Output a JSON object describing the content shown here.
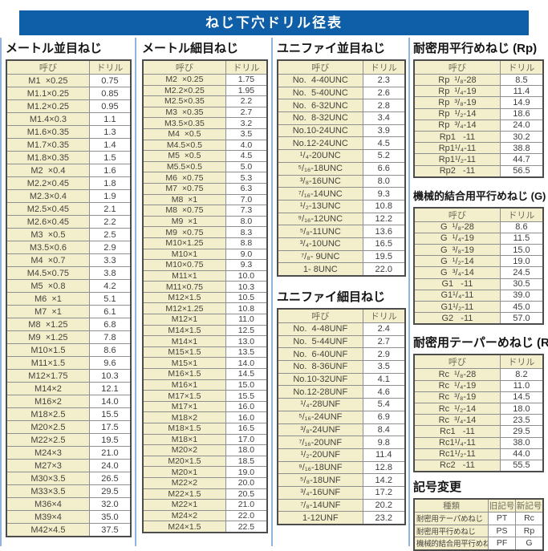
{
  "banner": {
    "title": "ねじ下穴ドリル径表"
  },
  "table_headers": {
    "name": "呼び",
    "drill": "ドリル"
  },
  "sections": {
    "metric_coarse": {
      "title": "メートル並目ねじ",
      "rows": [
        [
          "M1  ×0.25",
          "0.75"
        ],
        [
          "M1.1×0.25",
          "0.85"
        ],
        [
          "M1.2×0.25",
          "0.95"
        ],
        [
          "M1.4×0.3",
          "1.1"
        ],
        [
          "M1.6×0.35",
          "1.3"
        ],
        [
          "M1.7×0.35",
          "1.4"
        ],
        [
          "M1.8×0.35",
          "1.5"
        ],
        [
          "M2  ×0.4",
          "1.6"
        ],
        [
          "M2.2×0.45",
          "1.8"
        ],
        [
          "M2.3×0.4",
          "1.9"
        ],
        [
          "M2.5×0.45",
          "2.1"
        ],
        [
          "M2.6×0.45",
          "2.2"
        ],
        [
          "M3  ×0.5",
          "2.5"
        ],
        [
          "M3.5×0.6",
          "2.9"
        ],
        [
          "M4  ×0.7",
          "3.3"
        ],
        [
          "M4.5×0.75",
          "3.8"
        ],
        [
          "M5  ×0.8",
          "4.2"
        ],
        [
          "M6  ×1",
          "5.1"
        ],
        [
          "M7  ×1",
          "6.1"
        ],
        [
          "M8  ×1.25",
          "6.8"
        ],
        [
          "M9  ×1.25",
          "7.8"
        ],
        [
          "M10×1.5",
          "8.6"
        ],
        [
          "M11×1.5",
          "9.6"
        ],
        [
          "M12×1.75",
          "10.3"
        ],
        [
          "M14×2",
          "12.1"
        ],
        [
          "M16×2",
          "14.0"
        ],
        [
          "M18×2.5",
          "15.5"
        ],
        [
          "M20×2.5",
          "17.5"
        ],
        [
          "M22×2.5",
          "19.5"
        ],
        [
          "M24×3",
          "21.0"
        ],
        [
          "M27×3",
          "24.0"
        ],
        [
          "M30×3.5",
          "26.5"
        ],
        [
          "M33×3.5",
          "29.5"
        ],
        [
          "M36×4",
          "32.0"
        ],
        [
          "M39×4",
          "35.0"
        ],
        [
          "M42×4.5",
          "37.5"
        ]
      ]
    },
    "metric_fine": {
      "title": "メートル細目ねじ",
      "rows": [
        [
          "M2  ×0.25",
          "1.75"
        ],
        [
          "M2.2×0.25",
          "1.95"
        ],
        [
          "M2.5×0.35",
          "2.2"
        ],
        [
          "M3  ×0.35",
          "2.7"
        ],
        [
          "M3.5×0.35",
          "3.2"
        ],
        [
          "M4  ×0.5",
          "3.5"
        ],
        [
          "M4.5×0.5",
          "4.0"
        ],
        [
          "M5  ×0.5",
          "4.5"
        ],
        [
          "M5.5×0.5",
          "5.0"
        ],
        [
          "M6  ×0.75",
          "5.3"
        ],
        [
          "M7  ×0.75",
          "6.3"
        ],
        [
          "M8  ×1",
          "7.0"
        ],
        [
          "M8  ×0.75",
          "7.3"
        ],
        [
          "M9  ×1",
          "8.0"
        ],
        [
          "M9  ×0.75",
          "8.3"
        ],
        [
          "M10×1.25",
          "8.8"
        ],
        [
          "M10×1",
          "9.0"
        ],
        [
          "M10×0.75",
          "9.3"
        ],
        [
          "M11×1",
          "10.0"
        ],
        [
          "M11×0.75",
          "10.3"
        ],
        [
          "M12×1.5",
          "10.5"
        ],
        [
          "M12×1.25",
          "10.8"
        ],
        [
          "M12×1",
          "11.0"
        ],
        [
          "M14×1.5",
          "12.5"
        ],
        [
          "M14×1",
          "13.0"
        ],
        [
          "M15×1.5",
          "13.5"
        ],
        [
          "M15×1",
          "14.0"
        ],
        [
          "M16×1.5",
          "14.5"
        ],
        [
          "M16×1",
          "15.0"
        ],
        [
          "M17×1.5",
          "15.5"
        ],
        [
          "M17×1",
          "16.0"
        ],
        [
          "M18×2",
          "16.0"
        ],
        [
          "M18×1.5",
          "16.5"
        ],
        [
          "M18×1",
          "17.0"
        ],
        [
          "M20×2",
          "18.0"
        ],
        [
          "M20×1.5",
          "18.5"
        ],
        [
          "M20×1",
          "19.0"
        ],
        [
          "M22×2",
          "20.0"
        ],
        [
          "M22×1.5",
          "20.5"
        ],
        [
          "M22×1",
          "21.0"
        ],
        [
          "M24×2",
          "22.0"
        ],
        [
          "M24×1.5",
          "22.5"
        ]
      ]
    },
    "unified_coarse": {
      "title": "ユニファイ並目ねじ",
      "rows": [
        [
          "No.  4-40UNC",
          "2.3"
        ],
        [
          "No.  5-40UNC",
          "2.6"
        ],
        [
          "No.  6-32UNC",
          "2.8"
        ],
        [
          "No.  8-32UNC",
          "3.4"
        ],
        [
          "No.10-24UNC",
          "3.9"
        ],
        [
          "No.12-24UNC",
          "4.5"
        ],
        [
          "¹/₄-20UNC",
          "5.2"
        ],
        [
          "⁵/₁₆-18UNC",
          "6.6"
        ],
        [
          "³/₈-16UNC",
          "8.0"
        ],
        [
          "⁷/₁₆-14UNC",
          "9.3"
        ],
        [
          "¹/₂-13UNC",
          "10.8"
        ],
        [
          "⁹/₁₆-12UNC",
          "12.2"
        ],
        [
          "⁵/₈-11UNC",
          "13.6"
        ],
        [
          "³/₄-10UNC",
          "16.5"
        ],
        [
          "⁷/₈- 9UNC",
          "19.5"
        ],
        [
          "1- 8UNC",
          "22.0"
        ]
      ]
    },
    "unified_fine": {
      "title": "ユニファイ細目ねじ",
      "rows": [
        [
          "No.  4-48UNF",
          "2.4"
        ],
        [
          "No.  5-44UNF",
          "2.7"
        ],
        [
          "No.  6-40UNF",
          "2.9"
        ],
        [
          "No.  8-36UNF",
          "3.5"
        ],
        [
          "No.10-32UNF",
          "4.1"
        ],
        [
          "No.12-28UNF",
          "4.6"
        ],
        [
          "¹/₄-28UNF",
          "5.4"
        ],
        [
          "⁵/₁₆-24UNF",
          "6.9"
        ],
        [
          "³/₈-24UNF",
          "8.4"
        ],
        [
          "⁷/₁₆-20UNF",
          "9.8"
        ],
        [
          "¹/₂-20UNF",
          "11.4"
        ],
        [
          "⁹/₁₆-18UNF",
          "12.8"
        ],
        [
          "⁵/₈-18UNF",
          "14.2"
        ],
        [
          "³/₄-16UNF",
          "17.2"
        ],
        [
          "⁷/₈-14UNF",
          "20.2"
        ],
        [
          "1-12UNF",
          "23.2"
        ]
      ]
    },
    "rp": {
      "title": "耐密用平行めねじ (Rp)",
      "rows": [
        [
          "Rp  ¹/₈-28",
          "8.5"
        ],
        [
          "Rp  ¹/₄-19",
          "11.4"
        ],
        [
          "Rp  ³/₈-19",
          "14.9"
        ],
        [
          "Rp  ¹/₂-14",
          "18.6"
        ],
        [
          "Rp  ³/₄-14",
          "24.0"
        ],
        [
          "Rp1   -11",
          "30.2"
        ],
        [
          "Rp1¹/₄-11",
          "38.8"
        ],
        [
          "Rp1¹/₂-11",
          "44.7"
        ],
        [
          "Rp2   -11",
          "56.5"
        ]
      ]
    },
    "g": {
      "title": "機械的結合用平行めねじ (G)",
      "rows": [
        [
          "G  ¹/₈-28",
          "8.6"
        ],
        [
          "G  ¹/₄-19",
          "11.5"
        ],
        [
          "G  ³/₈-19",
          "15.0"
        ],
        [
          "G  ¹/₂-14",
          "19.0"
        ],
        [
          "G  ³/₄-14",
          "24.5"
        ],
        [
          "G1   -11",
          "30.5"
        ],
        [
          "G1¹/₄-11",
          "39.0"
        ],
        [
          "G1¹/₂-11",
          "45.0"
        ],
        [
          "G2   -11",
          "57.0"
        ]
      ]
    },
    "rc": {
      "title": "耐密用テーパーめねじ (Rc)",
      "rows": [
        [
          "Rc  ¹/₈-28",
          "8.2"
        ],
        [
          "Rc  ¹/₄-19",
          "11.0"
        ],
        [
          "Rc  ³/₈-19",
          "14.5"
        ],
        [
          "Rc  ¹/₂-14",
          "18.0"
        ],
        [
          "Rc  ³/₄-14",
          "23.5"
        ],
        [
          "Rc1   -11",
          "29.5"
        ],
        [
          "Rc1¹/₄-11",
          "38.0"
        ],
        [
          "Rc1¹/₂-11",
          "44.0"
        ],
        [
          "Rc2   -11",
          "55.5"
        ]
      ]
    }
  },
  "symbol_change": {
    "title": "記号変更",
    "headers": [
      "種類",
      "旧記号",
      "新記号"
    ],
    "rows": [
      [
        "耐密用テーパめねじ",
        "PT",
        "Rc"
      ],
      [
        "耐密用平行めねじ",
        "PS",
        "Rp"
      ],
      [
        "機械的結合用平行めねじ",
        "PF",
        "G"
      ]
    ]
  },
  "colors": {
    "banner_bg": "#0f5ea8",
    "cell_cream": "#f3efcd",
    "column_divider_blue": "#8fb6da"
  }
}
